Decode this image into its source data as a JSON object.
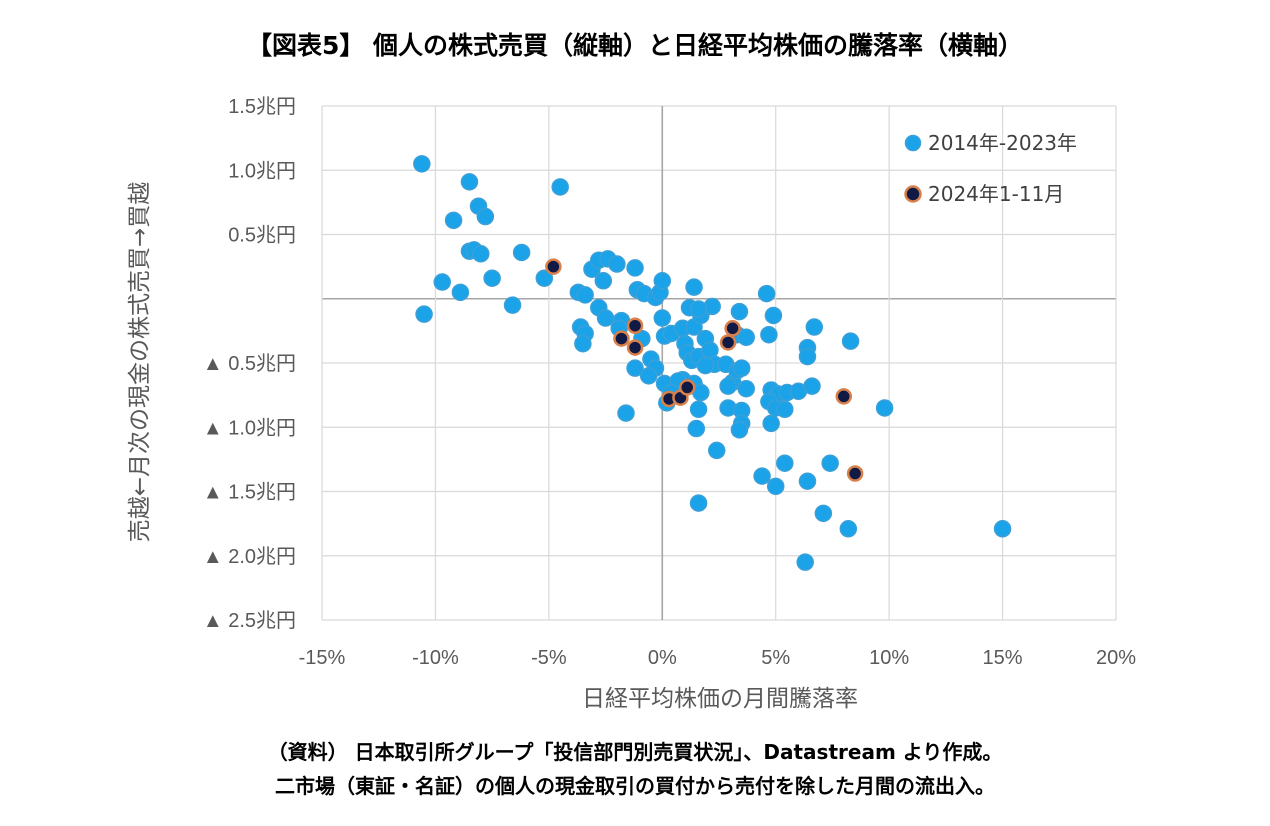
{
  "title": "【図表5】 個人の株式売買（縦軸）と日経平均株価の騰落率（横軸）",
  "notes": {
    "line1": "（資料） 日本取引所グループ「投信部門別売買状況」、Datastream より作成。",
    "line2": "二市場（東証・名証）の個人の現金取引の買付から売付を除した月間の流出入。"
  },
  "colors": {
    "series1": "#1aa3e8",
    "series2": "#101a44",
    "series2_edge": "#d9804a",
    "grid": "#d9d9d9",
    "axis": "#a6a6a6"
  },
  "chart_data": {
    "type": "scatter",
    "title": "【図表5】 個人の株式売買（縦軸）と日経平均株価の騰落率（横軸）",
    "xlabel": "日経平均株価の月間騰落率",
    "ylabel": "売越←月次の現金の株式売買→買越",
    "xlim": [
      -0.15,
      0.2
    ],
    "ylim": [
      -2.5,
      1.5
    ],
    "x_ticks": [
      -0.15,
      -0.1,
      -0.05,
      0,
      0.05,
      0.1,
      0.15,
      0.2
    ],
    "x_tick_labels": [
      "-15%",
      "-10%",
      "-5%",
      "0%",
      "5%",
      "10%",
      "15%",
      "20%"
    ],
    "y_ticks": [
      1.5,
      1.0,
      0.5,
      0,
      -0.5,
      -1.0,
      -1.5,
      -2.0,
      -2.5
    ],
    "y_tick_labels": [
      "1.5兆円",
      "1.0兆円",
      "0.5兆円",
      "",
      "▲ 0.5兆円",
      "▲ 1.0兆円",
      "▲ 1.5兆円",
      "▲ 2.0兆円",
      "▲ 2.5兆円"
    ],
    "grid": true,
    "legend_position": "top-right",
    "series": [
      {
        "name": "2014年-2023年",
        "points": [
          [
            -0.106,
            1.05
          ],
          [
            -0.085,
            0.91
          ],
          [
            -0.045,
            0.87
          ],
          [
            -0.081,
            0.72
          ],
          [
            -0.078,
            0.64
          ],
          [
            -0.092,
            0.61
          ],
          [
            -0.085,
            0.37
          ],
          [
            -0.083,
            0.38
          ],
          [
            -0.08,
            0.35
          ],
          [
            -0.062,
            0.36
          ],
          [
            -0.097,
            0.13
          ],
          [
            -0.089,
            0.05
          ],
          [
            -0.075,
            0.16
          ],
          [
            -0.066,
            -0.05
          ],
          [
            -0.105,
            -0.12
          ],
          [
            -0.052,
            0.16
          ],
          [
            -0.037,
            0.05
          ],
          [
            -0.034,
            0.03
          ],
          [
            -0.031,
            0.23
          ],
          [
            -0.028,
            0.3
          ],
          [
            -0.024,
            0.31
          ],
          [
            -0.02,
            0.27
          ],
          [
            -0.012,
            0.24
          ],
          [
            -0.026,
            0.14
          ],
          [
            -0.028,
            -0.07
          ],
          [
            -0.036,
            -0.22
          ],
          [
            -0.034,
            -0.27
          ],
          [
            -0.035,
            -0.35
          ],
          [
            -0.025,
            -0.15
          ],
          [
            -0.018,
            -0.17
          ],
          [
            -0.011,
            0.07
          ],
          [
            -0.008,
            0.04
          ],
          [
            -0.003,
            0.01
          ],
          [
            -0.001,
            0.05
          ],
          [
            0.0,
            0.14
          ],
          [
            -0.019,
            -0.23
          ],
          [
            -0.009,
            -0.31
          ],
          [
            -0.005,
            -0.47
          ],
          [
            -0.003,
            -0.54
          ],
          [
            -0.012,
            -0.54
          ],
          [
            -0.006,
            -0.6
          ],
          [
            0.001,
            -0.66
          ],
          [
            0.0,
            -0.15
          ],
          [
            0.001,
            -0.29
          ],
          [
            0.004,
            -0.27
          ],
          [
            0.009,
            -0.23
          ],
          [
            0.012,
            -0.07
          ],
          [
            0.014,
            -0.22
          ],
          [
            0.017,
            -0.13
          ],
          [
            0.022,
            -0.06
          ],
          [
            0.014,
            0.09
          ],
          [
            0.016,
            -0.08
          ],
          [
            0.01,
            -0.35
          ],
          [
            0.011,
            -0.42
          ],
          [
            0.013,
            -0.48
          ],
          [
            0.016,
            -0.45
          ],
          [
            0.019,
            -0.31
          ],
          [
            0.021,
            -0.4
          ],
          [
            0.023,
            -0.51
          ],
          [
            0.019,
            -0.52
          ],
          [
            0.009,
            -0.63
          ],
          [
            0.014,
            -0.66
          ],
          [
            0.017,
            -0.73
          ],
          [
            0.007,
            -0.64
          ],
          [
            0.004,
            -0.73
          ],
          [
            0.002,
            -0.81
          ],
          [
            0.016,
            -0.86
          ],
          [
            0.015,
            -1.01
          ],
          [
            0.024,
            -1.18
          ],
          [
            0.016,
            -1.59
          ],
          [
            -0.016,
            -0.89
          ],
          [
            0.028,
            -0.51
          ],
          [
            0.031,
            -0.65
          ],
          [
            0.029,
            -0.68
          ],
          [
            0.033,
            -0.56
          ],
          [
            0.035,
            -0.54
          ],
          [
            0.037,
            -0.7
          ],
          [
            0.033,
            -0.28
          ],
          [
            0.037,
            -0.3
          ],
          [
            0.034,
            -0.1
          ],
          [
            0.029,
            -0.85
          ],
          [
            0.035,
            -0.87
          ],
          [
            0.035,
            -0.97
          ],
          [
            0.034,
            -1.02
          ],
          [
            0.047,
            -0.28
          ],
          [
            0.049,
            -0.13
          ],
          [
            0.046,
            0.04
          ],
          [
            0.048,
            -0.71
          ],
          [
            0.051,
            -0.74
          ],
          [
            0.047,
            -0.8
          ],
          [
            0.05,
            -0.85
          ],
          [
            0.054,
            -0.86
          ],
          [
            0.055,
            -0.73
          ],
          [
            0.06,
            -0.72
          ],
          [
            0.066,
            -0.68
          ],
          [
            0.048,
            -0.97
          ],
          [
            0.044,
            -1.38
          ],
          [
            0.054,
            -1.28
          ],
          [
            0.05,
            -1.46
          ],
          [
            0.064,
            -1.42
          ],
          [
            0.067,
            -0.22
          ],
          [
            0.064,
            -0.38
          ],
          [
            0.064,
            -0.45
          ],
          [
            0.083,
            -0.33
          ],
          [
            0.074,
            -1.28
          ],
          [
            0.071,
            -1.67
          ],
          [
            0.082,
            -1.79
          ],
          [
            0.063,
            -2.05
          ],
          [
            0.098,
            -0.85
          ],
          [
            0.15,
            -1.79
          ]
        ]
      },
      {
        "name": "2024年1-11月",
        "points": [
          [
            -0.048,
            0.25
          ],
          [
            -0.018,
            -0.31
          ],
          [
            -0.012,
            -0.21
          ],
          [
            -0.012,
            -0.38
          ],
          [
            0.003,
            -0.78
          ],
          [
            0.008,
            -0.77
          ],
          [
            0.011,
            -0.69
          ],
          [
            0.029,
            -0.34
          ],
          [
            0.031,
            -0.23
          ],
          [
            0.08,
            -0.76
          ],
          [
            0.085,
            -1.36
          ]
        ]
      }
    ]
  }
}
